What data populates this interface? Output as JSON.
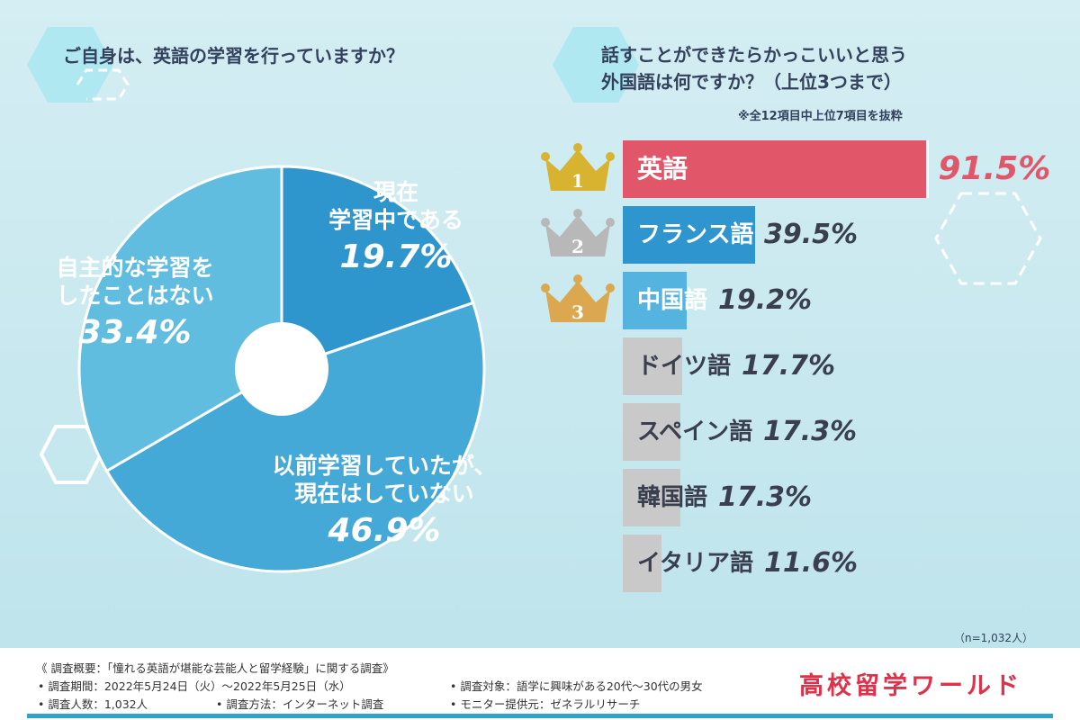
{
  "q1": {
    "title": "ご自身は、英語の学習を行っていますか？"
  },
  "q2": {
    "title_line1": "話すことができたらかっこいいと思う",
    "title_line2": "外国語は何ですか？（上位3つまで）",
    "note": "※全12項目中上位7項目を抜粋"
  },
  "colors": {
    "slice_current": "#2e96cc",
    "slice_past": "#45a9d8",
    "slice_never": "#60bde0",
    "bar_first": "#e2566a",
    "bar_ranked": "#2f95cf",
    "bar_third": "#55b3df",
    "bar_other": "#c9c9c9",
    "gold": "#d7b330",
    "silver": "#b8b8b8",
    "bronze": "#dca84f",
    "brand": "#e0314b"
  },
  "chart_data": [
    {
      "type": "pie",
      "title": "ご自身は、英語の学習を行っていますか？",
      "slices": [
        {
          "label_lines": [
            "現在",
            "学習中である"
          ],
          "value": 19.7,
          "pct_text": "19.7%"
        },
        {
          "label_lines": [
            "以前学習していたが、",
            "現在はしていない"
          ],
          "value": 46.9,
          "pct_text": "46.9%"
        },
        {
          "label_lines": [
            "自主的な学習を",
            "したことはない"
          ],
          "value": 33.4,
          "pct_text": "33.4%"
        }
      ]
    },
    {
      "type": "bar",
      "title": "話すことができたらかっこいいと思う外国語は何ですか？（上位3つまで）",
      "categories": [
        "英語",
        "フランス語",
        "中国語",
        "ドイツ語",
        "スペイン語",
        "韓国語",
        "イタリア語"
      ],
      "values": [
        91.5,
        39.5,
        19.2,
        17.7,
        17.3,
        17.3,
        11.6
      ],
      "value_text": [
        "91.5%",
        "39.5%",
        "19.2%",
        "17.7%",
        "17.3%",
        "17.3%",
        "11.6%"
      ],
      "ranks": [
        "1",
        "2",
        "3"
      ],
      "n_note": "（n=1,032人）"
    }
  ],
  "footer": {
    "line1": "《 調査概要：「憧れる英語が堪能な芸能人と留学経験」に関する調査》",
    "line2a": "• 調査期間：2022年5月24日（火）～2022年5月25日（水）",
    "line2b": "• 調査対象：語学に興味がある20代～30代の男女",
    "line3a": "• 調査人数：1,032人",
    "line3b": "• 調査方法：インターネット調査",
    "line3c": "• モニター提供元：ゼネラルリサーチ",
    "brand": "高校留学ワールド"
  }
}
